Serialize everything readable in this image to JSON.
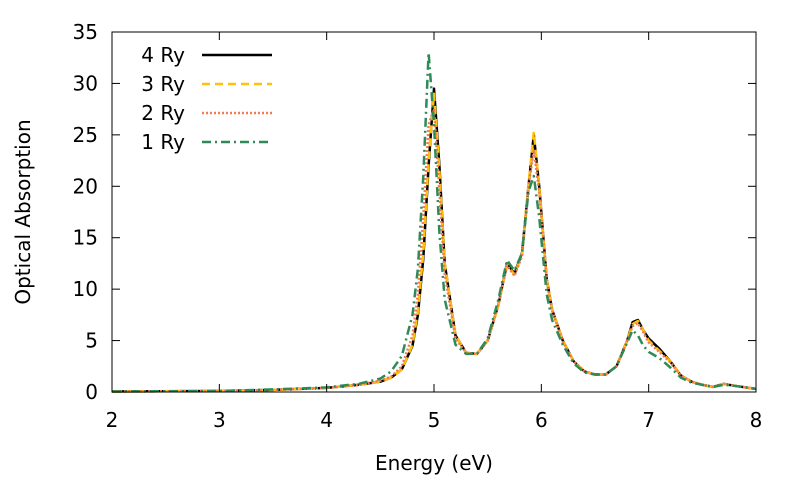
{
  "chart_data": {
    "type": "line",
    "xlabel": "Energy (eV)",
    "ylabel": "Optical Absorption",
    "xlim": [
      2,
      8
    ],
    "ylim": [
      0,
      35
    ],
    "xticks": [
      2,
      3,
      4,
      5,
      6,
      7,
      8
    ],
    "yticks": [
      0,
      5,
      10,
      15,
      20,
      25,
      30,
      35
    ],
    "grid": false,
    "legend_position": "top-left",
    "series": [
      {
        "name": "4 Ry",
        "color": "#000000",
        "style": "solid",
        "x": [
          2,
          3,
          3.5,
          4,
          4.3,
          4.5,
          4.6,
          4.7,
          4.8,
          4.85,
          4.9,
          4.95,
          5.0,
          5.05,
          5.1,
          5.2,
          5.3,
          5.4,
          5.5,
          5.6,
          5.68,
          5.75,
          5.82,
          5.88,
          5.93,
          5.98,
          6.05,
          6.1,
          6.2,
          6.3,
          6.4,
          6.5,
          6.6,
          6.7,
          6.8,
          6.85,
          6.9,
          6.95,
          7.0,
          7.1,
          7.2,
          7.3,
          7.4,
          7.5,
          7.6,
          7.7,
          7.8,
          8.0
        ],
        "y": [
          0.05,
          0.1,
          0.2,
          0.4,
          0.7,
          1.0,
          1.4,
          2.2,
          4.5,
          7.5,
          13.0,
          22.0,
          29.5,
          22.0,
          12.5,
          5.5,
          3.8,
          3.7,
          5.0,
          8.5,
          12.5,
          11.5,
          13.5,
          20.0,
          25.0,
          20.0,
          11.0,
          8.0,
          5.0,
          3.0,
          2.0,
          1.7,
          1.7,
          2.5,
          5.0,
          6.8,
          7.0,
          6.0,
          5.2,
          4.2,
          3.0,
          1.6,
          1.0,
          0.7,
          0.5,
          0.8,
          0.6,
          0.3
        ]
      },
      {
        "name": "3 Ry",
        "color": "#FFC20A",
        "style": "dashed",
        "x": [
          2,
          3,
          3.5,
          4,
          4.3,
          4.5,
          4.6,
          4.7,
          4.8,
          4.85,
          4.9,
          4.95,
          5.0,
          5.05,
          5.1,
          5.2,
          5.3,
          5.4,
          5.5,
          5.6,
          5.68,
          5.75,
          5.82,
          5.88,
          5.93,
          5.98,
          6.05,
          6.1,
          6.2,
          6.3,
          6.4,
          6.5,
          6.6,
          6.7,
          6.8,
          6.85,
          6.9,
          6.95,
          7.0,
          7.1,
          7.2,
          7.3,
          7.4,
          7.5,
          7.6,
          7.7,
          7.8,
          8.0
        ],
        "y": [
          0.05,
          0.1,
          0.2,
          0.4,
          0.7,
          1.0,
          1.4,
          2.2,
          4.6,
          7.8,
          13.5,
          22.5,
          29.0,
          21.5,
          12.5,
          5.5,
          3.8,
          3.7,
          5.0,
          8.4,
          12.4,
          11.4,
          13.4,
          20.2,
          25.3,
          20.0,
          11.0,
          8.0,
          5.0,
          3.0,
          2.0,
          1.7,
          1.7,
          2.5,
          5.0,
          6.6,
          6.9,
          6.0,
          5.0,
          4.0,
          3.0,
          1.6,
          1.0,
          0.7,
          0.5,
          0.8,
          0.6,
          0.3
        ]
      },
      {
        "name": "2 Ry",
        "color": "#F47A54",
        "style": "dotted",
        "x": [
          2,
          3,
          3.5,
          4,
          4.3,
          4.5,
          4.6,
          4.7,
          4.8,
          4.85,
          4.9,
          4.95,
          5.0,
          5.05,
          5.1,
          5.2,
          5.3,
          5.4,
          5.5,
          5.6,
          5.68,
          5.75,
          5.82,
          5.88,
          5.93,
          5.98,
          6.05,
          6.1,
          6.2,
          6.3,
          6.4,
          6.5,
          6.6,
          6.7,
          6.8,
          6.85,
          6.9,
          6.95,
          7.0,
          7.1,
          7.2,
          7.3,
          7.4,
          7.5,
          7.6,
          7.7,
          7.8,
          8.0
        ],
        "y": [
          0.05,
          0.1,
          0.2,
          0.4,
          0.7,
          1.1,
          1.5,
          2.5,
          5.5,
          9.5,
          17.0,
          26.0,
          27.5,
          19.5,
          11.5,
          5.2,
          3.8,
          3.7,
          5.0,
          8.5,
          12.3,
          11.3,
          13.2,
          20.0,
          23.5,
          19.5,
          10.8,
          7.9,
          4.9,
          3.0,
          2.0,
          1.7,
          1.7,
          2.5,
          5.0,
          6.4,
          6.7,
          5.8,
          4.8,
          3.9,
          2.9,
          1.6,
          1.0,
          0.7,
          0.5,
          0.8,
          0.6,
          0.3
        ]
      },
      {
        "name": "1 Ry",
        "color": "#2E8B57",
        "style": "dash-dot",
        "x": [
          2,
          3,
          3.5,
          4,
          4.3,
          4.5,
          4.6,
          4.7,
          4.8,
          4.85,
          4.9,
          4.95,
          5.0,
          5.05,
          5.1,
          5.2,
          5.3,
          5.4,
          5.5,
          5.6,
          5.68,
          5.75,
          5.82,
          5.88,
          5.93,
          5.98,
          6.05,
          6.1,
          6.2,
          6.3,
          6.4,
          6.5,
          6.6,
          6.7,
          6.8,
          6.85,
          6.9,
          6.95,
          7.0,
          7.1,
          7.2,
          7.3,
          7.4,
          7.5,
          7.6,
          7.7,
          7.8,
          8.0
        ],
        "y": [
          0.05,
          0.1,
          0.25,
          0.45,
          0.8,
          1.3,
          2.0,
          3.5,
          7.5,
          12.0,
          21.0,
          33.0,
          26.0,
          15.5,
          9.0,
          4.6,
          3.7,
          3.7,
          5.2,
          9.0,
          12.8,
          11.8,
          13.5,
          19.5,
          21.0,
          17.0,
          9.5,
          7.0,
          4.6,
          2.8,
          1.9,
          1.7,
          1.7,
          2.5,
          4.8,
          6.0,
          5.5,
          4.5,
          3.9,
          3.3,
          2.4,
          1.4,
          0.9,
          0.7,
          0.5,
          0.7,
          0.6,
          0.3
        ]
      }
    ]
  }
}
